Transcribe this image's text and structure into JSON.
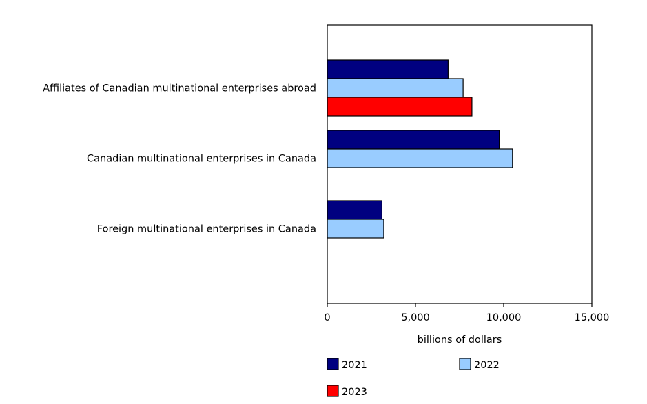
{
  "chart_data": {
    "type": "bar",
    "orientation": "horizontal",
    "title": "",
    "xlabel": "billions of dollars",
    "ylabel": "",
    "xlim": [
      0,
      15000
    ],
    "x_ticks": [
      0,
      5000,
      10000,
      15000
    ],
    "x_tick_labels": [
      "0",
      "5,000",
      "10,000",
      "15,000"
    ],
    "grid": false,
    "legend_position": "bottom",
    "categories": [
      "Affiliates of Canadian multinational enterprises abroad",
      "Canadian multinational enterprises in Canada",
      "Foreign multinational enterprises in Canada"
    ],
    "series": [
      {
        "name": "2021",
        "color": "#000080",
        "values": [
          6850,
          9750,
          3100
        ]
      },
      {
        "name": "2022",
        "color": "#99ccff",
        "values": [
          7700,
          10500,
          3200
        ]
      },
      {
        "name": "2023",
        "color": "#ff0000",
        "values": [
          8200,
          null,
          null
        ]
      }
    ]
  }
}
